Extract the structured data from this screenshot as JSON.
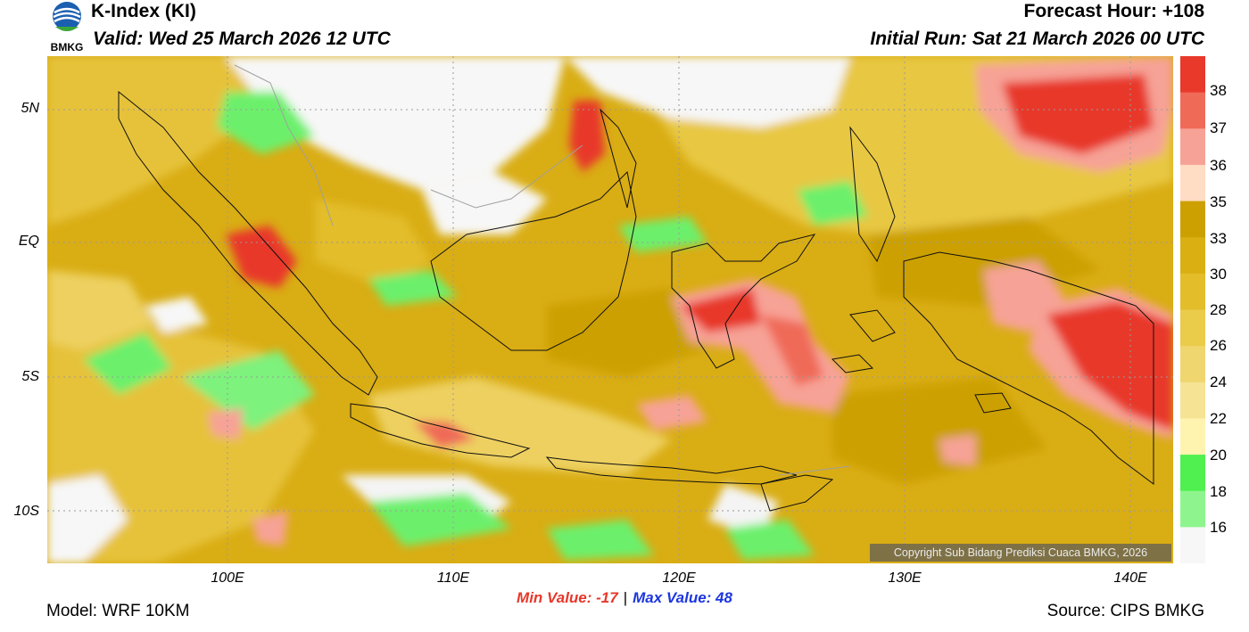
{
  "header": {
    "title": "K-Index (KI)",
    "valid": "Valid: Wed 25 March 2026 12 UTC",
    "forecast_hour": "Forecast Hour: +108",
    "initial_run": "Initial Run: Sat 21 March 2026 00 UTC",
    "logo_text": "BMKG"
  },
  "axes": {
    "lat_labels": [
      "5N",
      "EQ",
      "5S",
      "10S"
    ],
    "lon_labels": [
      "100E",
      "110E",
      "120E",
      "130E",
      "140E"
    ]
  },
  "colorbar": {
    "labels": [
      "38",
      "37",
      "36",
      "35",
      "33",
      "30",
      "28",
      "26",
      "24",
      "22",
      "20",
      "18",
      "16"
    ],
    "colors": [
      "#e8392b",
      "#f06a58",
      "#f7a296",
      "#ffdcc4",
      "#cca000",
      "#d9af12",
      "#e3bd2a",
      "#ebcb4a",
      "#f0d66e",
      "#f6e394",
      "#fff3b0",
      "#4ff04f",
      "#8ef58e",
      "#f7f7f7"
    ]
  },
  "stats": {
    "min_value": "Min Value: -17",
    "separator": "|",
    "max_value": "Max Value:  48"
  },
  "footer": {
    "model": "Model: WRF 10KM",
    "source": "Source: CIPS BMKG",
    "copyright": "Copyright Sub Bidang Prediksi Cuaca BMKG, 2026"
  }
}
